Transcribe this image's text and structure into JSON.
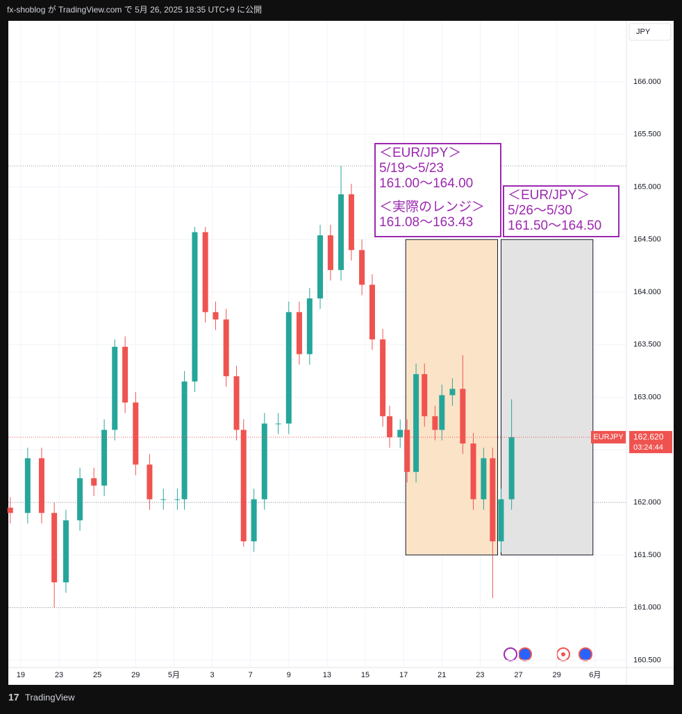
{
  "header": {
    "caption": "fx-shoblog が TradingView.com で 5月 26, 2025 18:35 UTC+9 に公開"
  },
  "footer": {
    "brand": "TradingView"
  },
  "chart_data": {
    "type": "candlestick",
    "symbol": "EURJPY",
    "currency": "JPY",
    "last_price": {
      "value": 162.62,
      "label": "162.620"
    },
    "countdown": "03:24:44",
    "up_color": "#26a69a",
    "down_color": "#ef5350",
    "grid": true,
    "x": [
      -0.55,
      0.36,
      1.09,
      1.75,
      2.36,
      3.09,
      3.82,
      4.36,
      4.91,
      5.45,
      6.0,
      6.73,
      7.45,
      8.18,
      8.55,
      9.09,
      9.64,
      10.18,
      10.73,
      11.27,
      11.64,
      12.18,
      12.73,
      13.45,
      14.0,
      14.55,
      15.09,
      15.64,
      16.18,
      16.73,
      17.27,
      17.82,
      18.36,
      18.91,
      19.27,
      19.82,
      20.18,
      20.65,
      21.09,
      21.64,
      22.0,
      22.55,
      23.09,
      23.64,
      24.18,
      24.65,
      25.09,
      25.64
    ],
    "open": [
      161.95,
      161.9,
      162.42,
      161.9,
      161.24,
      161.83,
      162.23,
      162.16,
      162.69,
      163.48,
      162.95,
      162.36,
      162.03,
      162.03,
      162.03,
      163.15,
      164.57,
      163.81,
      163.74,
      163.2,
      162.69,
      161.63,
      162.03,
      162.75,
      162.75,
      163.81,
      163.41,
      163.94,
      164.54,
      164.21,
      164.93,
      164.4,
      164.07,
      163.55,
      162.82,
      162.62,
      162.69,
      162.29,
      163.22,
      162.82,
      162.69,
      163.02,
      163.08,
      162.56,
      162.03,
      162.42,
      161.63,
      162.03
    ],
    "high": [
      162.05,
      162.52,
      162.52,
      162.0,
      161.93,
      162.33,
      162.33,
      162.79,
      163.55,
      163.58,
      163.05,
      162.46,
      162.13,
      162.13,
      163.25,
      164.62,
      164.62,
      163.91,
      163.84,
      163.3,
      162.79,
      162.13,
      162.85,
      162.85,
      163.91,
      163.91,
      164.04,
      164.64,
      164.64,
      165.2,
      165.03,
      164.5,
      164.17,
      163.65,
      162.92,
      162.79,
      162.79,
      163.32,
      163.32,
      162.92,
      163.12,
      163.18,
      163.4,
      162.66,
      162.52,
      162.52,
      162.13,
      162.98
    ],
    "low": [
      161.8,
      161.8,
      161.8,
      161.0,
      161.14,
      161.73,
      162.06,
      162.06,
      162.59,
      162.85,
      162.26,
      161.93,
      161.93,
      161.93,
      161.93,
      163.05,
      163.71,
      163.64,
      163.1,
      162.59,
      161.58,
      161.53,
      161.93,
      162.65,
      162.65,
      163.31,
      163.31,
      163.84,
      164.11,
      164.11,
      164.3,
      163.97,
      163.45,
      162.72,
      162.52,
      162.52,
      162.19,
      162.19,
      162.72,
      162.59,
      162.59,
      162.92,
      162.46,
      161.93,
      161.93,
      161.09,
      161.53,
      161.93
    ],
    "close": [
      161.9,
      162.42,
      161.9,
      161.24,
      161.83,
      162.23,
      162.16,
      162.69,
      163.48,
      162.95,
      162.36,
      162.03,
      162.03,
      162.03,
      163.15,
      164.57,
      163.81,
      163.74,
      163.2,
      162.69,
      161.63,
      162.03,
      162.75,
      162.75,
      163.81,
      163.41,
      163.94,
      164.54,
      164.21,
      164.93,
      164.4,
      164.07,
      163.55,
      162.82,
      162.62,
      162.69,
      162.29,
      163.22,
      162.82,
      162.69,
      163.02,
      163.08,
      162.56,
      162.03,
      162.42,
      161.63,
      162.03,
      162.62
    ],
    "xlim": [
      -0.65,
      31.64
    ],
    "ylim": [
      160.43,
      166.58
    ],
    "xticks": [
      {
        "value": 0,
        "label": "19"
      },
      {
        "value": 2,
        "label": "23"
      },
      {
        "value": 4,
        "label": "25"
      },
      {
        "value": 6,
        "label": "29"
      },
      {
        "value": 8,
        "label": "5月"
      },
      {
        "value": 10,
        "label": "3"
      },
      {
        "value": 12,
        "label": "7"
      },
      {
        "value": 14,
        "label": "9"
      },
      {
        "value": 16,
        "label": "13"
      },
      {
        "value": 18,
        "label": "15"
      },
      {
        "value": 20,
        "label": "17"
      },
      {
        "value": 22,
        "label": "21"
      },
      {
        "value": 24,
        "label": "23"
      },
      {
        "value": 26,
        "label": "27"
      },
      {
        "value": 28,
        "label": "29"
      },
      {
        "value": 30,
        "label": "6月"
      }
    ],
    "yticks": [
      {
        "value": 160.5,
        "label": "160.500"
      },
      {
        "value": 161,
        "label": "161.000"
      },
      {
        "value": 161.5,
        "label": "161.500"
      },
      {
        "value": 162,
        "label": "162.000"
      },
      {
        "value": 162.5,
        "label": "162.500"
      },
      {
        "value": 163,
        "label": "163.000"
      },
      {
        "value": 163.5,
        "label": "163.500"
      },
      {
        "value": 164,
        "label": "164.000"
      },
      {
        "value": 164.5,
        "label": "164.500"
      },
      {
        "value": 165,
        "label": "165.000"
      },
      {
        "value": 165.5,
        "label": "165.500"
      },
      {
        "value": 166,
        "label": "166.000"
      }
    ],
    "hlines": [
      165.2,
      162.0,
      161.0
    ],
    "ranges": [
      {
        "x": [
          20.11,
          24.91
        ],
        "y": [
          161.5,
          164.5
        ],
        "color": "#fbe3c8"
      },
      {
        "x": [
          25.09,
          29.89
        ],
        "y": [
          161.5,
          164.5
        ],
        "color": "#e3e3e3"
      }
    ],
    "notes": [
      {
        "color": "#9c27b0",
        "lines": [
          "＜EUR/JPY＞",
          "5/19～5/23",
          "161.00～164.00"
        ],
        "lines2": [
          "＜実際のレンジ＞",
          "161.08～163.43"
        ]
      },
      {
        "color": "#9c27b0",
        "lines": [
          "＜EUR/JPY＞",
          "5/26～5/30",
          "161.50～164.50"
        ]
      }
    ]
  }
}
